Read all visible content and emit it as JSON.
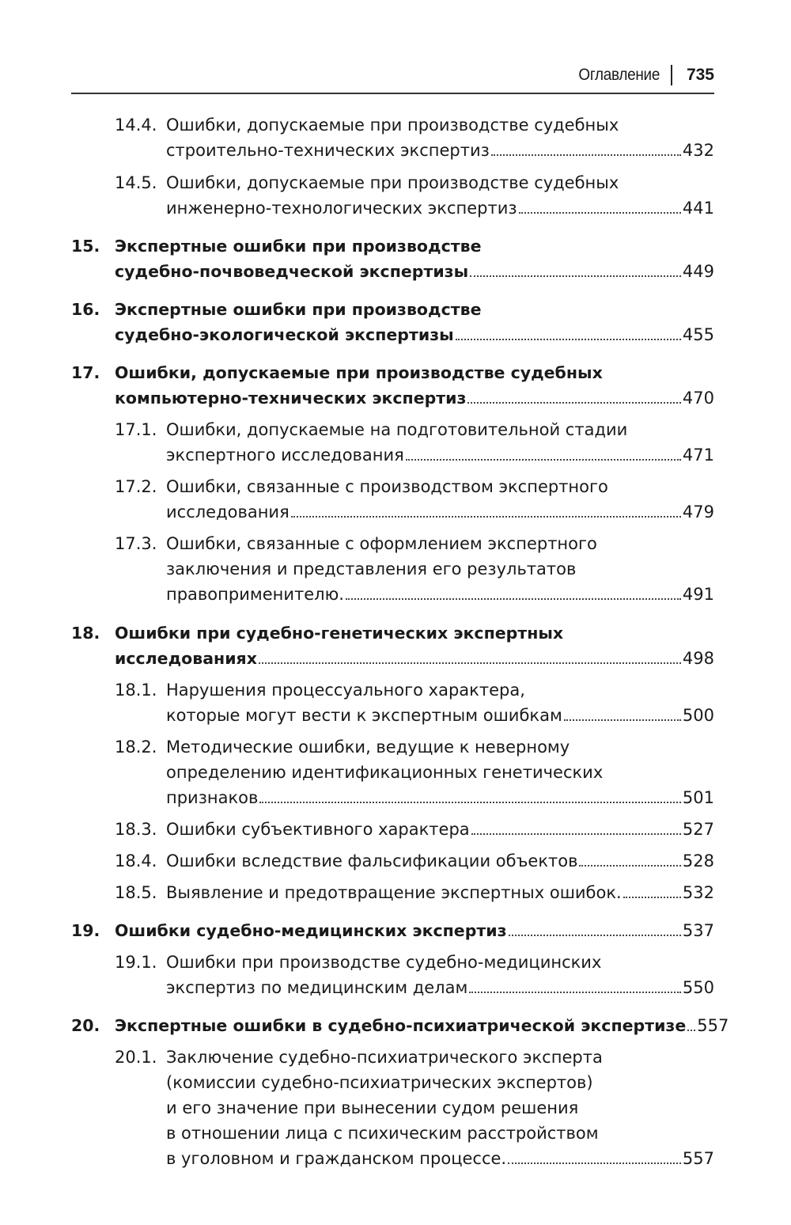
{
  "header": {
    "title": "Оглавление",
    "page": "735"
  },
  "entries": [
    {
      "num": "14.4.",
      "level": 2,
      "lines": [
        "Ошибки, допускаемые при производстве судебных",
        "строительно-технических экспертиз"
      ],
      "page": "432"
    },
    {
      "num": "14.5.",
      "level": 2,
      "lines": [
        "Ошибки, допускаемые при производстве судебных",
        "инженерно-технологических экспертиз"
      ],
      "page": "441"
    },
    {
      "num": "15.",
      "level": 1,
      "lines": [
        "Экспертные ошибки при производстве",
        "судебно-почвоведческой экспертизы"
      ],
      "page": "449"
    },
    {
      "num": "16.",
      "level": 1,
      "lines": [
        "Экспертные ошибки при производстве",
        "судебно-экологической экспертизы"
      ],
      "page": "455"
    },
    {
      "num": "17.",
      "level": 1,
      "lines": [
        "Ошибки, допускаемые при производстве судебных",
        "компьютерно-технических экспертиз"
      ],
      "page": "470"
    },
    {
      "num": "17.1.",
      "level": 2,
      "lines": [
        "Ошибки, допускаемые на подготовительной стадии",
        "экспертного исследования"
      ],
      "page": "471"
    },
    {
      "num": "17.2.",
      "level": 2,
      "lines": [
        "Ошибки, связанные с производством экспертного",
        "исследования"
      ],
      "page": "479"
    },
    {
      "num": "17.3.",
      "level": 2,
      "lines": [
        "Ошибки, связанные с оформлением экспертного",
        "заключения и представления его результатов",
        "правоприменителю."
      ],
      "page": "491"
    },
    {
      "num": "18.",
      "level": 1,
      "lines": [
        "Ошибки при судебно-генетических экспертных",
        "исследованиях"
      ],
      "page": "498"
    },
    {
      "num": "18.1.",
      "level": 2,
      "lines": [
        "Нарушения процессуального характера,",
        "которые могут вести к экспертным ошибкам"
      ],
      "page": "500"
    },
    {
      "num": "18.2.",
      "level": 2,
      "lines": [
        "Методические ошибки, ведущие к неверному",
        "определению идентификационных генетических",
        "признаков"
      ],
      "page": "501"
    },
    {
      "num": "18.3.",
      "level": 2,
      "lines": [
        "Ошибки субъективного характера"
      ],
      "page": "527"
    },
    {
      "num": "18.4.",
      "level": 2,
      "lines": [
        "Ошибки вследствие фальсификации объектов"
      ],
      "page": "528"
    },
    {
      "num": "18.5.",
      "level": 2,
      "lines": [
        "Выявление и предотвращение экспертных ошибок."
      ],
      "page": "532"
    },
    {
      "num": "19.",
      "level": 1,
      "lines": [
        "Ошибки судебно-медицинских экспертиз"
      ],
      "page": "537"
    },
    {
      "num": "19.1.",
      "level": 2,
      "lines": [
        "Ошибки при производстве судебно-медицинских",
        "экспертиз по медицинским делам"
      ],
      "page": "550"
    },
    {
      "num": "20.",
      "level": 1,
      "lines": [
        "Экспертные ошибки в судебно-психиатрической экспертизе"
      ],
      "page": "557"
    },
    {
      "num": "20.1.",
      "level": 2,
      "lines": [
        "Заключение судебно-психиатрического эксперта",
        "(комиссии судебно-психиатрических экспертов)",
        "и его значение при вынесении судом решения",
        "в отношении лица с психическим расстройством",
        "в уголовном и гражданском процессе."
      ],
      "page": "557"
    }
  ]
}
